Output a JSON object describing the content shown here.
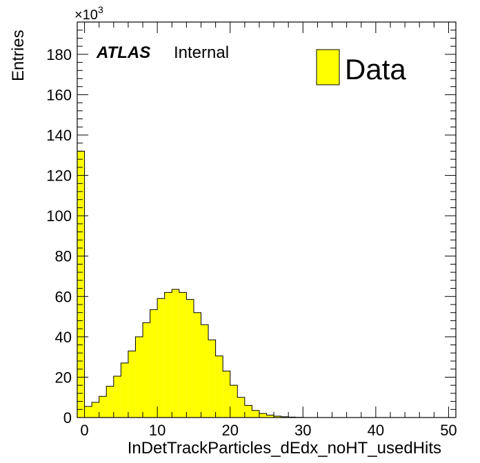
{
  "chart_data": {
    "type": "bar",
    "subtype": "histogram",
    "xlabel": "InDetTrackParticles_dEdx_noHT_usedHits",
    "ylabel": "Entries",
    "y_multiplier": "×10",
    "y_multiplier_exponent": "3",
    "experiment_label": "ATLAS",
    "status_label": "Internal",
    "xlim": [
      -1,
      51
    ],
    "ylim": [
      0,
      196
    ],
    "x_ticks": [
      0,
      10,
      20,
      30,
      40,
      50
    ],
    "y_ticks": [
      0,
      20,
      40,
      60,
      80,
      100,
      120,
      140,
      160,
      180
    ],
    "grid": false,
    "legend_position": "top-right",
    "series": [
      {
        "name": "Data",
        "color": "#ffff00",
        "bin_width": 1,
        "bin_low_edges": [
          -1,
          0,
          1,
          2,
          3,
          4,
          5,
          6,
          7,
          8,
          9,
          10,
          11,
          12,
          13,
          14,
          15,
          16,
          17,
          18,
          19,
          20,
          21,
          22,
          23,
          24,
          25,
          26,
          27,
          28,
          29,
          30,
          31,
          32,
          33,
          34,
          35,
          36,
          37,
          38,
          39,
          40,
          41,
          42,
          43,
          44,
          45,
          46,
          47,
          48,
          49,
          50
        ],
        "values": [
          132,
          5.5,
          7.5,
          10.5,
          15.5,
          20.5,
          27,
          33,
          40,
          47,
          53.5,
          59,
          62,
          63.5,
          62,
          58.5,
          52,
          46,
          38.5,
          30.5,
          23,
          16,
          10,
          6,
          3.5,
          2,
          1.2,
          0.7,
          0.4,
          0.2,
          0.1,
          0,
          0,
          0,
          0,
          0,
          0,
          0,
          0,
          0,
          0,
          0,
          0,
          0,
          0,
          0,
          0,
          0,
          0,
          0,
          0,
          0
        ]
      }
    ]
  },
  "colors": {
    "fill": "#ffff00",
    "line": "#000000",
    "background": "#ffffff"
  }
}
